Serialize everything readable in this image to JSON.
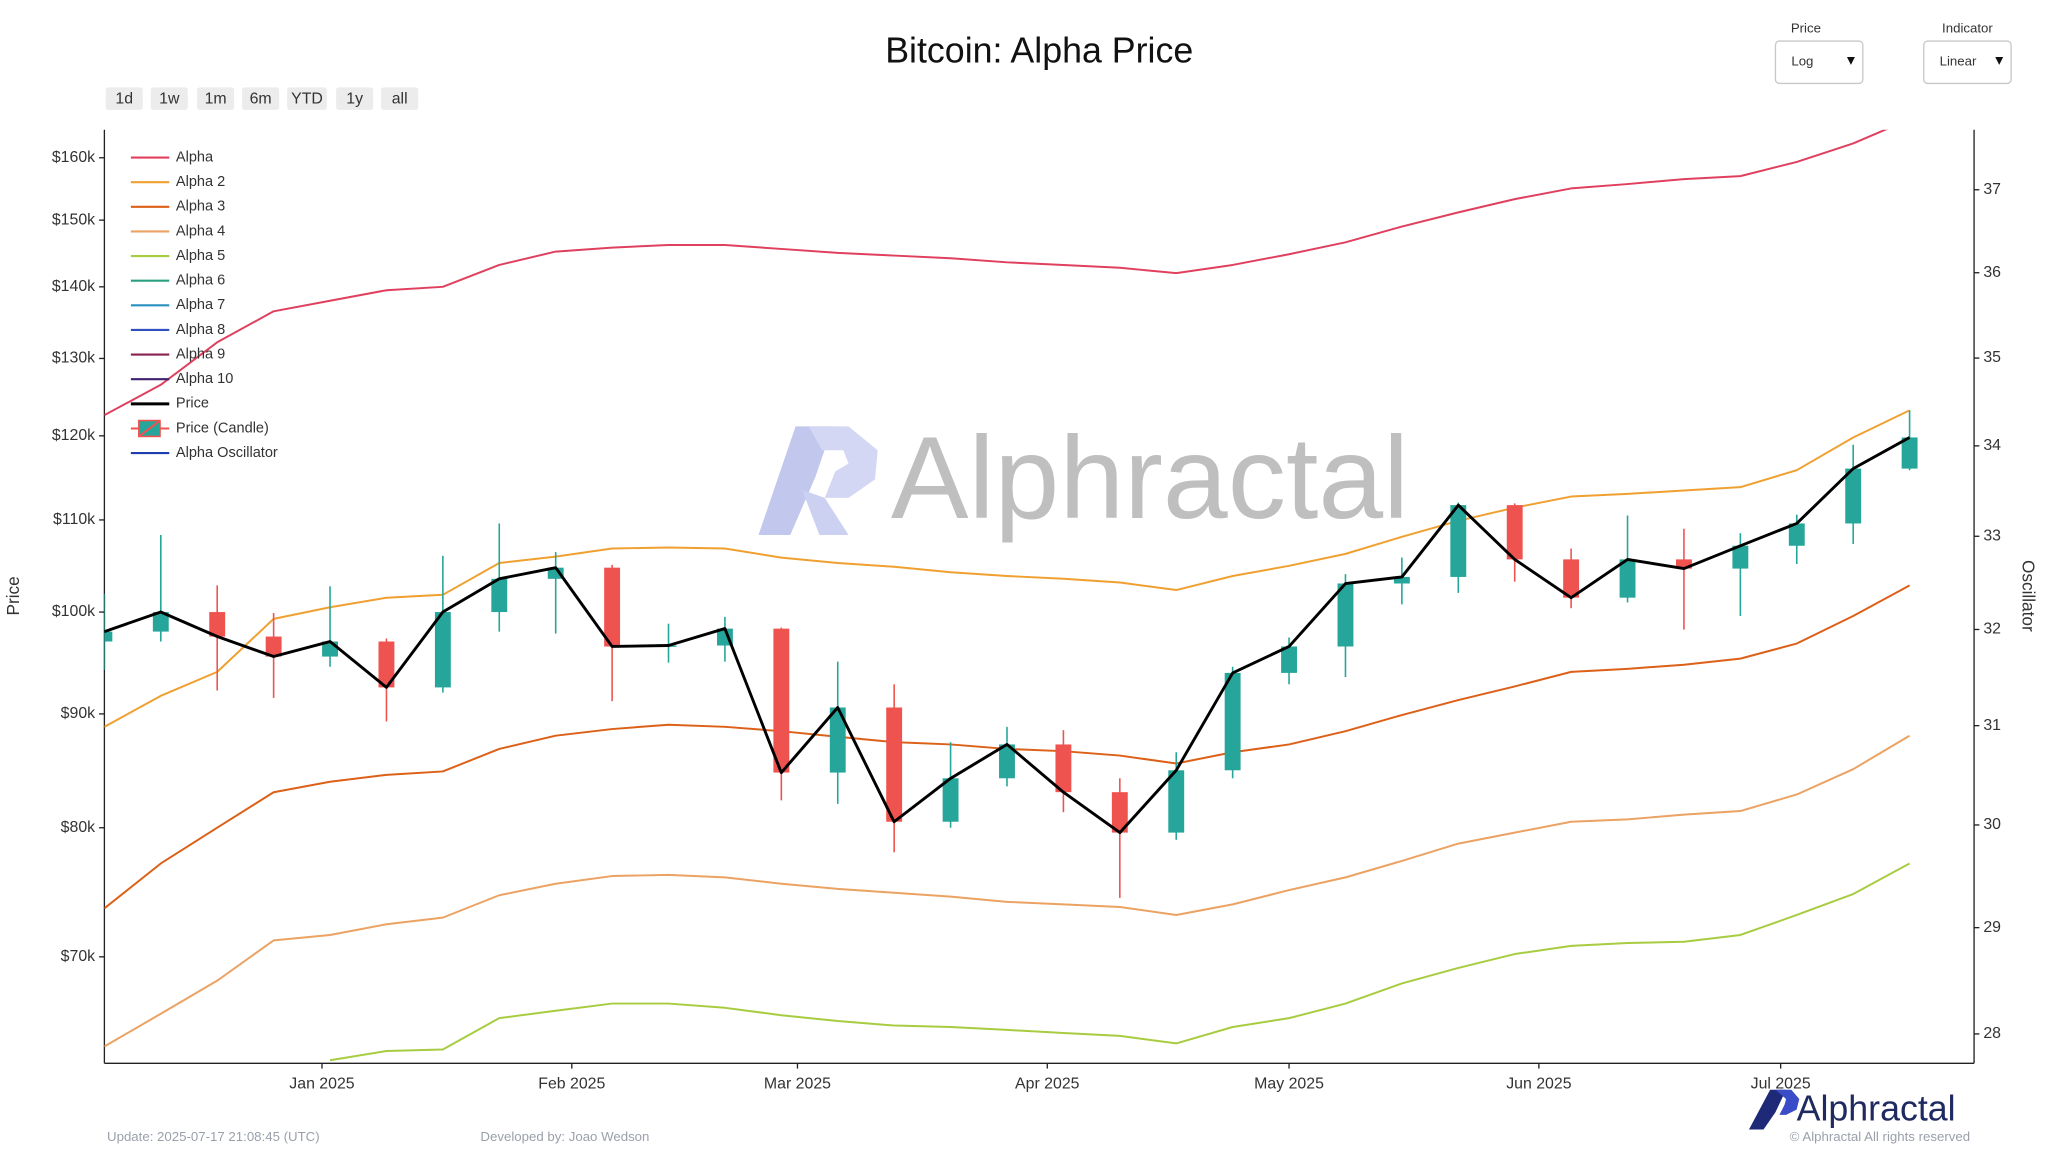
{
  "controls": {
    "range_buttons": [
      "1d",
      "1w",
      "1m",
      "6m",
      "YTD",
      "1y",
      "all"
    ],
    "price_scale": {
      "label": "Price",
      "value": "Log"
    },
    "indicator_scale": {
      "label": "Indicator",
      "value": "Linear"
    }
  },
  "brand": "Alphractal",
  "footer": {
    "update": "Update: 2025-07-17 21:08:45 (UTC)",
    "developer": "Developed by: Joao Wedson",
    "copyright": "© Alphractal All rights reserved"
  },
  "chart_data": {
    "type": "line",
    "title": "Bitcoin: Alpha Price",
    "ylabel": "Price",
    "y2label": "Oscillator",
    "ylog": true,
    "y2log": true,
    "grid": false,
    "legend": "upper left",
    "x": [
      "2024-12-05",
      "2024-12-12",
      "2024-12-19",
      "2024-12-26",
      "2025-01-02",
      "2025-01-09",
      "2025-01-16",
      "2025-01-23",
      "2025-01-30",
      "2025-02-06",
      "2025-02-13",
      "2025-02-20",
      "2025-02-27",
      "2025-03-06",
      "2025-03-13",
      "2025-03-20",
      "2025-03-27",
      "2025-04-03",
      "2025-04-10",
      "2025-04-17",
      "2025-04-24",
      "2025-05-01",
      "2025-05-08",
      "2025-05-15",
      "2025-05-22",
      "2025-05-29",
      "2025-06-05",
      "2025-06-12",
      "2025-06-19",
      "2025-06-26",
      "2025-07-03",
      "2025-07-10",
      "2025-07-17"
    ],
    "xlim": [
      "2024-12-05",
      "2025-07-25"
    ],
    "xticks": [
      {
        "value": "2025-01-01",
        "label": "Jan 2025"
      },
      {
        "value": "2025-02-01",
        "label": "Feb 2025"
      },
      {
        "value": "2025-03-01",
        "label": "Mar 2025"
      },
      {
        "value": "2025-04-01",
        "label": "Apr 2025"
      },
      {
        "value": "2025-05-01",
        "label": "May 2025"
      },
      {
        "value": "2025-06-01",
        "label": "Jun 2025"
      },
      {
        "value": "2025-07-01",
        "label": "Jul 2025"
      }
    ],
    "ylim": [
      62700,
      164700
    ],
    "yticks": [
      {
        "value": 70000,
        "label": "$70k"
      },
      {
        "value": 80000,
        "label": "$80k"
      },
      {
        "value": 90000,
        "label": "$90k"
      },
      {
        "value": 100000,
        "label": "$100k"
      },
      {
        "value": 110000,
        "label": "$110k"
      },
      {
        "value": 120000,
        "label": "$120k"
      },
      {
        "value": 130000,
        "label": "$130k"
      },
      {
        "value": 140000,
        "label": "$140k"
      },
      {
        "value": 150000,
        "label": "$150k"
      },
      {
        "value": 160000,
        "label": "$160k"
      }
    ],
    "y2lim": [
      27.73,
      37.74
    ],
    "y2ticks": [
      28,
      29,
      30,
      31,
      32,
      33,
      34,
      35,
      36,
      37
    ],
    "series": [
      {
        "name": "Alpha",
        "color": "#e0405e",
        "values": [
          122600,
          126500,
          132200,
          136500,
          138000,
          139500,
          140000,
          143200,
          145200,
          145800,
          146200,
          146200,
          145600,
          145000,
          144600,
          144200,
          143600,
          143200,
          142800,
          142000,
          143200,
          144800,
          146600,
          149000,
          151200,
          153300,
          155000,
          155700,
          156500,
          157000,
          159300,
          162400,
          166500
        ]
      },
      {
        "name": "Alpha 2",
        "color": "#f0a030",
        "values": [
          88800,
          91700,
          94000,
          99300,
          100500,
          101500,
          101800,
          105200,
          105900,
          106800,
          106900,
          106800,
          105800,
          105200,
          104800,
          104200,
          103800,
          103500,
          103100,
          102300,
          103800,
          104900,
          106200,
          108100,
          109900,
          111400,
          112700,
          113000,
          113400,
          113800,
          115800,
          119800,
          123200
        ]
      },
      {
        "name": "Alpha 3",
        "color": "#dc6018",
        "values": [
          73600,
          77100,
          80000,
          83000,
          83900,
          84500,
          84800,
          86800,
          88000,
          88600,
          89000,
          88800,
          88400,
          87900,
          87400,
          87200,
          86800,
          86600,
          86200,
          85500,
          86500,
          87200,
          88400,
          89900,
          91300,
          92600,
          94000,
          94300,
          94700,
          95300,
          96800,
          99600,
          102800
        ]
      },
      {
        "name": "Alpha 4",
        "color": "#eba262",
        "values": [
          63800,
          66000,
          68300,
          71200,
          71600,
          72400,
          72900,
          74600,
          75500,
          76100,
          76200,
          76000,
          75500,
          75100,
          74800,
          74500,
          74100,
          73900,
          73700,
          73100,
          73900,
          75000,
          76000,
          77300,
          78700,
          79600,
          80500,
          80700,
          81100,
          81400,
          82800,
          85000,
          88000
        ]
      },
      {
        "name": "Alpha 5",
        "color": "#a8cc40",
        "values": [
          null,
          null,
          null,
          null,
          62900,
          63500,
          63600,
          65700,
          66200,
          66700,
          66700,
          66400,
          65900,
          65500,
          65200,
          65100,
          64900,
          64700,
          64500,
          64000,
          65100,
          65700,
          66700,
          68100,
          69200,
          70200,
          70800,
          71000,
          71100,
          71600,
          73100,
          74700,
          77100
        ]
      },
      {
        "name": "Alpha 6",
        "color": "#2aa080"
      },
      {
        "name": "Alpha 7",
        "color": "#2a90c0"
      },
      {
        "name": "Alpha 8",
        "color": "#3050c0"
      },
      {
        "name": "Alpha 9",
        "color": "#8a2050"
      },
      {
        "name": "Alpha 10",
        "color": "#402070"
      },
      {
        "name": "Price",
        "color": "#000000",
        "width": 2.2,
        "values": [
          98000,
          100000,
          97500,
          95500,
          97000,
          92500,
          100000,
          103500,
          104700,
          96500,
          96600,
          98300,
          84700,
          90600,
          80500,
          84200,
          87200,
          83000,
          79600,
          84900,
          93900,
          96500,
          103000,
          103700,
          111700,
          105600,
          101500,
          105600,
          104600,
          107100,
          109600,
          116000,
          119800
        ]
      },
      {
        "name": "Price (Candle)",
        "type": "candle",
        "up_color": "#26a69a",
        "down_color": "#ef5350",
        "open": [
          97000,
          98000,
          100000,
          97500,
          95500,
          97000,
          92500,
          100000,
          103500,
          104700,
          96500,
          96600,
          98300,
          84700,
          90600,
          80500,
          84200,
          87200,
          83000,
          79600,
          84900,
          93900,
          96500,
          103000,
          103700,
          111700,
          105600,
          101500,
          105600,
          104600,
          107100,
          109600,
          116000
        ],
        "high": [
          101900,
          108300,
          102800,
          99900,
          102700,
          97300,
          106000,
          109600,
          106400,
          105000,
          98800,
          99500,
          98400,
          95000,
          92800,
          87400,
          88800,
          88500,
          84200,
          86500,
          94500,
          97400,
          104000,
          105800,
          112000,
          111900,
          106800,
          110500,
          109000,
          108500,
          110600,
          118900,
          123200
        ],
        "low": [
          94200,
          97000,
          92200,
          91500,
          94500,
          89300,
          92000,
          98000,
          97800,
          91200,
          94900,
          95000,
          82300,
          82000,
          78000,
          80000,
          83500,
          81300,
          74400,
          79000,
          84200,
          92800,
          93500,
          100800,
          102000,
          103200,
          100400,
          101000,
          98200,
          99600,
          105100,
          107300,
          115800
        ],
        "close": [
          98000,
          100000,
          97500,
          95500,
          97000,
          92500,
          100000,
          103500,
          104700,
          96500,
          96600,
          98300,
          84700,
          90600,
          80500,
          84200,
          87200,
          83000,
          79600,
          84900,
          93900,
          96500,
          103000,
          103700,
          111700,
          105600,
          101500,
          105600,
          104600,
          107100,
          109600,
          116000,
          119800
        ]
      },
      {
        "name": "Alpha Oscillator",
        "color": "#1f3fb0",
        "axis": "y2"
      }
    ]
  }
}
